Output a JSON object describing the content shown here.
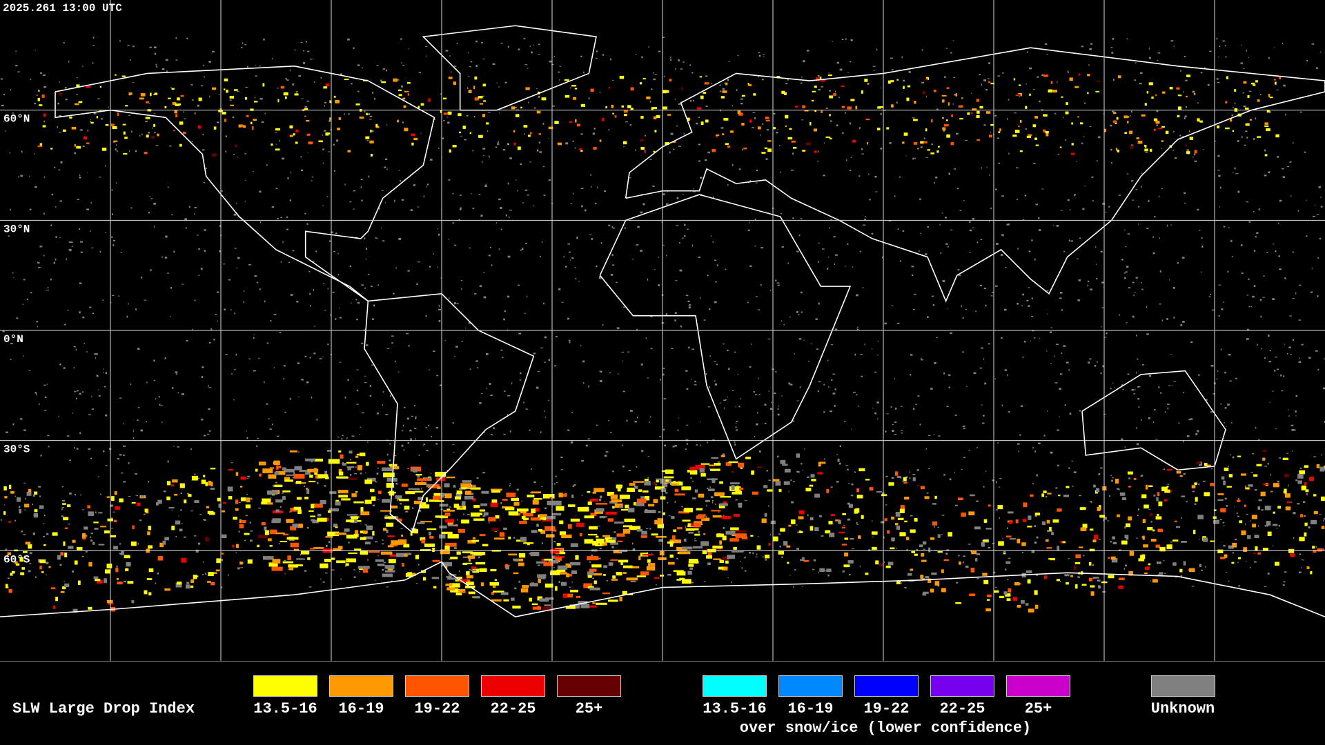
{
  "timestamp": "2025.261 13:00 UTC",
  "lat_labels": [
    {
      "lat": 60,
      "label": "60°N"
    },
    {
      "lat": 30,
      "label": "30°N"
    },
    {
      "lat": 0,
      "label": "0°N"
    },
    {
      "lat": -30,
      "label": "30°S"
    },
    {
      "lat": -60,
      "label": "60°S"
    }
  ],
  "legend": {
    "title": "SLW Large Drop Index",
    "groups": [
      {
        "items": [
          {
            "label": "13.5-16",
            "color": "#ffff00"
          },
          {
            "label": "16-19",
            "color": "#ff9900"
          },
          {
            "label": "19-22",
            "color": "#ff5500"
          },
          {
            "label": "22-25",
            "color": "#ee0000"
          },
          {
            "label": "25+",
            "color": "#660000"
          }
        ]
      },
      {
        "items": [
          {
            "label": "13.5-16",
            "color": "#00ffff"
          },
          {
            "label": "16-19",
            "color": "#0088ff"
          },
          {
            "label": "19-22",
            "color": "#0000ff"
          },
          {
            "label": "22-25",
            "color": "#7700ee"
          },
          {
            "label": "25+",
            "color": "#cc00cc"
          }
        ],
        "caption": "over snow/ice (lower confidence)"
      }
    ],
    "unknown": {
      "label": "Unknown",
      "color": "#808080"
    }
  }
}
